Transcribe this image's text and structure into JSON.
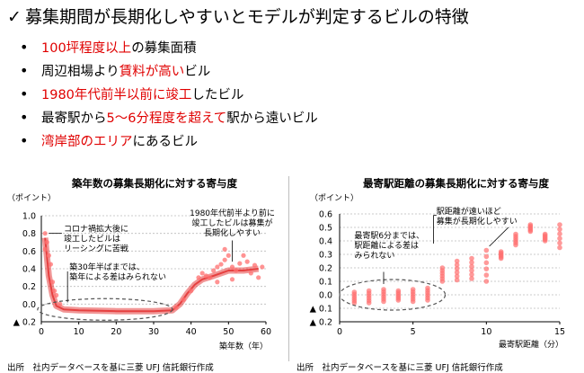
{
  "title": {
    "check": "✓",
    "text": "募集期間が長期化しやすいとモデルが判定するビルの特徴"
  },
  "bullets": [
    {
      "parts": [
        {
          "text": "100坪程度以上",
          "red": true
        },
        {
          "text": "の募集面積",
          "red": false
        }
      ]
    },
    {
      "parts": [
        {
          "text": "周辺相場より",
          "red": false
        },
        {
          "text": "賃料が高い",
          "red": true
        },
        {
          "text": "ビル",
          "red": false
        }
      ]
    },
    {
      "parts": [
        {
          "text": "1980年代前半以前に竣工",
          "red": true
        },
        {
          "text": "したビル",
          "red": false
        }
      ]
    },
    {
      "parts": [
        {
          "text": "最寄駅から",
          "red": false
        },
        {
          "text": "5～6分程度を超えて",
          "red": true
        },
        {
          "text": "駅から遠いビル",
          "red": false
        }
      ]
    },
    {
      "parts": [
        {
          "text": "湾岸部のエリア",
          "red": true
        },
        {
          "text": "にあるビル",
          "red": false
        }
      ]
    }
  ],
  "colors": {
    "accent_red": "#e00000",
    "marker": "#ff6f6f",
    "line": "#e64040"
  },
  "chart_data": [
    {
      "type": "scatter",
      "title": "築年数の募集長期化に対する寄与度",
      "ylabel": "（ポイント）",
      "xlabel": "築年数（年）",
      "xlim": [
        0,
        60
      ],
      "ylim": [
        -0.2,
        1.0
      ],
      "x_ticks": [
        0,
        10,
        20,
        30,
        40,
        50,
        60
      ],
      "y_ticks": [
        1.0,
        0.8,
        0.6,
        0.4,
        0.2,
        0.0,
        -0.2
      ],
      "y_tick_labels": [
        "1.0",
        "0.8",
        "0.6",
        "0.4",
        "0.2",
        "0.0",
        "▲ 0.2"
      ],
      "trend": [
        [
          1,
          0.75
        ],
        [
          2,
          0.32
        ],
        [
          3,
          0.1
        ],
        [
          4,
          -0.02
        ],
        [
          6,
          -0.06
        ],
        [
          10,
          -0.07
        ],
        [
          20,
          -0.08
        ],
        [
          30,
          -0.08
        ],
        [
          35,
          -0.07
        ],
        [
          37,
          0.0
        ],
        [
          39,
          0.12
        ],
        [
          41,
          0.22
        ],
        [
          43,
          0.28
        ],
        [
          46,
          0.32
        ],
        [
          50,
          0.38
        ],
        [
          54,
          0.38
        ],
        [
          58,
          0.4
        ]
      ],
      "scatter": [
        [
          1,
          0.8
        ],
        [
          1.5,
          0.7
        ],
        [
          2,
          0.55
        ],
        [
          2.5,
          0.45
        ],
        [
          1,
          0.62
        ],
        [
          3,
          0.25
        ],
        [
          4,
          0.1
        ],
        [
          3.5,
          0.15
        ],
        [
          5,
          0.0
        ],
        [
          36,
          -0.04
        ],
        [
          38,
          0.05
        ],
        [
          40,
          0.15
        ],
        [
          42,
          0.3
        ],
        [
          43,
          0.35
        ],
        [
          44,
          0.32
        ],
        [
          45,
          0.3
        ],
        [
          46,
          0.38
        ],
        [
          47,
          0.42
        ],
        [
          48,
          0.45
        ],
        [
          49,
          0.5
        ],
        [
          50,
          0.55
        ],
        [
          51,
          0.42
        ],
        [
          52,
          0.38
        ],
        [
          53,
          0.46
        ],
        [
          55,
          0.48
        ],
        [
          56,
          0.35
        ],
        [
          57,
          0.44
        ],
        [
          58,
          0.3
        ],
        [
          59,
          0.42
        ],
        [
          49,
          0.62
        ],
        [
          51,
          0.28
        ],
        [
          54,
          0.55
        ],
        [
          47,
          0.25
        ]
      ],
      "annotations": [
        {
          "lines": [
            "コロナ禍拡大後に",
            "竣工したビルは",
            "リーシングに苦戦"
          ]
        },
        {
          "lines": [
            "1980年代前半より前に",
            "竣工したビルは募集が",
            "長期化しやすい"
          ]
        },
        {
          "lines": [
            "築30年半ばまでは、",
            "築年による差はみられない"
          ]
        }
      ],
      "source": "出所　社内データベースを基に三菱 UFJ 信託銀行作成"
    },
    {
      "type": "scatter",
      "title": "最寄駅距離の募集長期化に対する寄与度",
      "ylabel": "（ポイント）",
      "xlabel": "最寄駅距離（分）",
      "xlim": [
        0,
        15
      ],
      "ylim": [
        -0.2,
        0.6
      ],
      "x_ticks": [
        0,
        5,
        10,
        15
      ],
      "y_ticks": [
        0.6,
        0.5,
        0.4,
        0.3,
        0.2,
        0.1,
        0.0,
        -0.1,
        -0.2
      ],
      "y_tick_labels": [
        "0.6",
        "0.5",
        "0.4",
        "0.3",
        "0.2",
        "0.1",
        "0.0",
        "▲ 0.1",
        "▲ 0.2"
      ],
      "columns": [
        {
          "x": 1,
          "min": -0.06,
          "max": 0.02
        },
        {
          "x": 2,
          "min": -0.06,
          "max": 0.03
        },
        {
          "x": 3,
          "min": -0.05,
          "max": 0.04
        },
        {
          "x": 4,
          "min": -0.04,
          "max": 0.03
        },
        {
          "x": 5,
          "min": -0.05,
          "max": 0.04
        },
        {
          "x": 6,
          "min": -0.04,
          "max": 0.05
        },
        {
          "x": 7,
          "min": 0.1,
          "max": 0.2
        },
        {
          "x": 8,
          "min": 0.11,
          "max": 0.25
        },
        {
          "x": 9,
          "min": 0.12,
          "max": 0.27
        },
        {
          "x": 10,
          "min": 0.1,
          "max": 0.33
        },
        {
          "x": 11,
          "min": 0.27,
          "max": 0.32
        },
        {
          "x": 12,
          "min": 0.37,
          "max": 0.45
        },
        {
          "x": 13,
          "min": 0.47,
          "max": 0.52
        },
        {
          "x": 14,
          "min": 0.4,
          "max": 0.45
        },
        {
          "x": 15,
          "min": 0.35,
          "max": 0.52
        }
      ],
      "annotations": [
        {
          "lines": [
            "駅距離が遠いほど",
            "募集が長期化しやすい"
          ]
        },
        {
          "lines": [
            "最寄駅6分までは、",
            "駅距離による差は",
            "みられない"
          ]
        }
      ],
      "source": "出所　社内データベースを基に三菱 UFJ 信託銀行作成"
    }
  ]
}
